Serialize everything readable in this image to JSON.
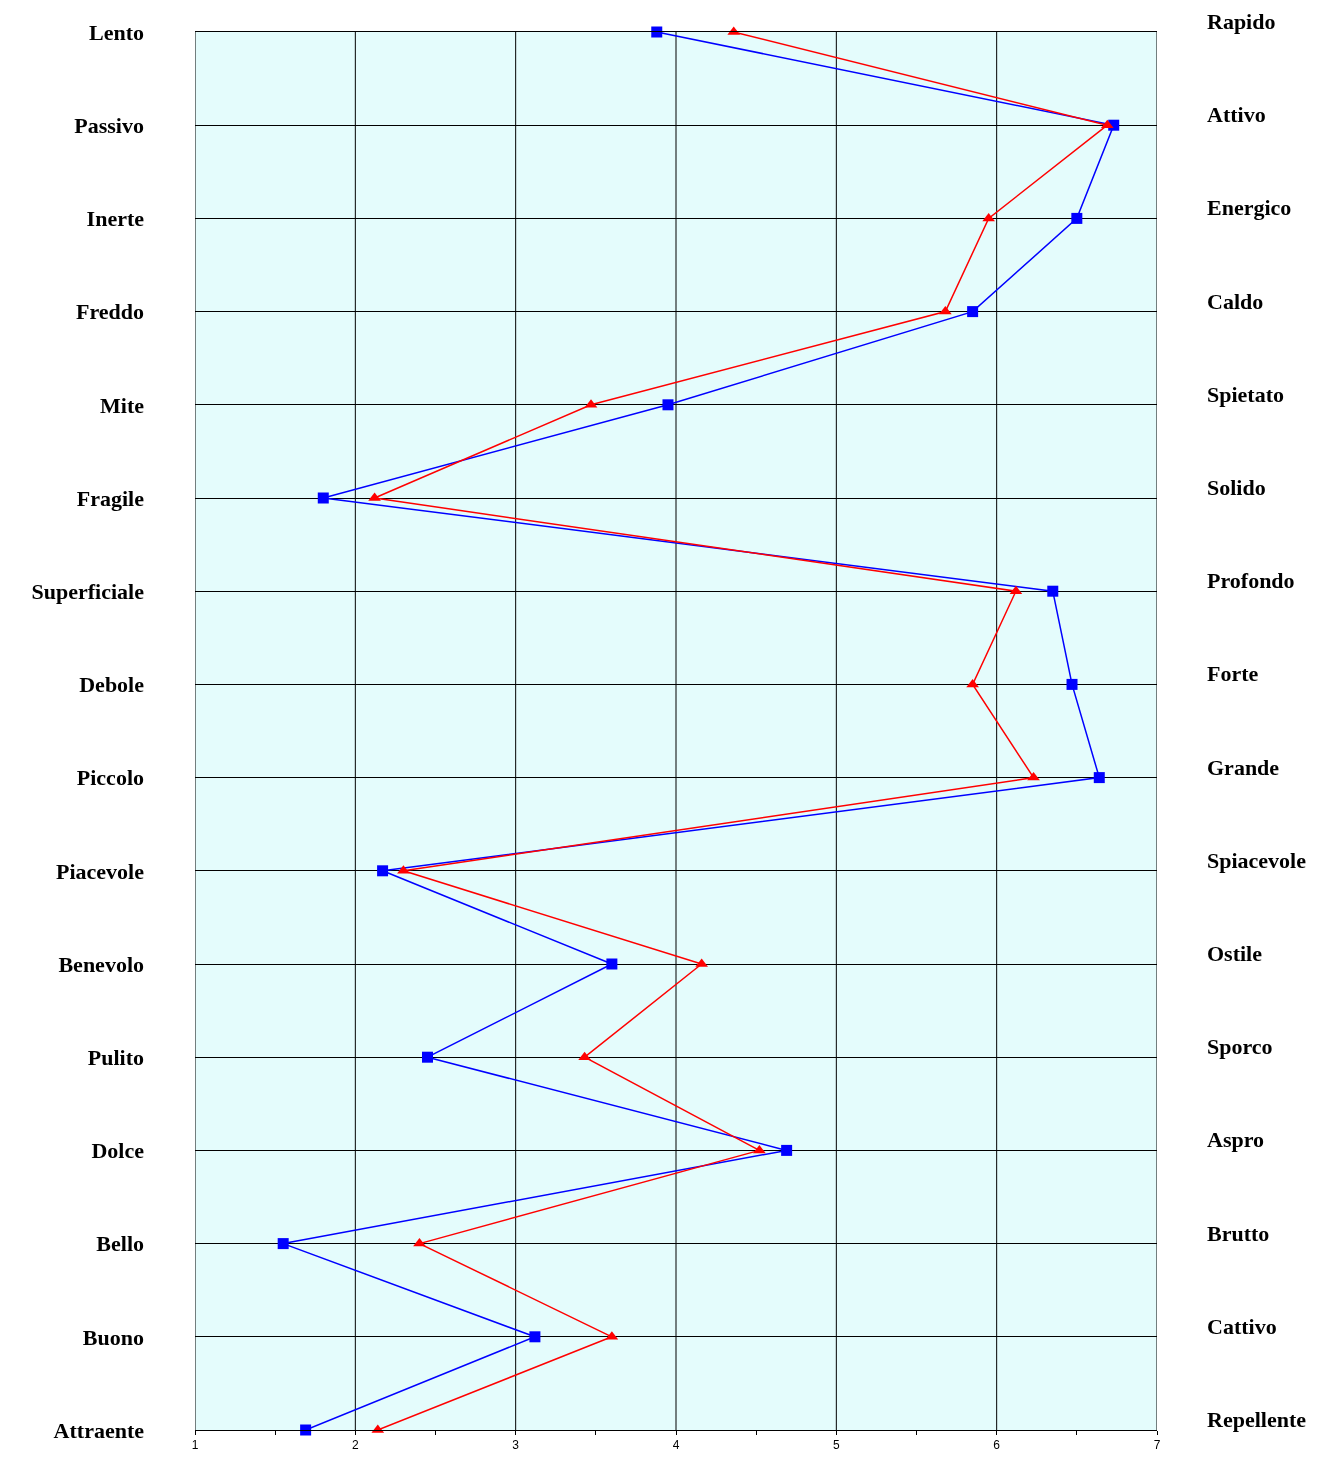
{
  "chart_data": {
    "type": "line",
    "orientation": "horizontal",
    "categories": [
      "Lento",
      "Passivo",
      "Inerte",
      "Freddo",
      "Mite",
      "Fragile",
      "Superficiale",
      "Debole",
      "Piccolo",
      "Piacevole",
      "Benevolo",
      "Pulito",
      "Dolce",
      "Bello",
      "Buono",
      "Attraente"
    ],
    "y2_categories": [
      "Rapido",
      "Attivo",
      "Energico",
      "Caldo",
      "Spietato",
      "Solido",
      "Profondo",
      "Forte",
      "Grande",
      "Spiacevole",
      "Ostile",
      "Sporco",
      "Aspro",
      "Brutto",
      "Cattivo",
      "Repellente"
    ],
    "series": [
      {
        "color": "#0000ff",
        "marker": "square",
        "values": [
          3.88,
          6.73,
          6.5,
          5.85,
          3.95,
          1.8,
          6.35,
          6.47,
          6.64,
          2.17,
          3.6,
          2.45,
          4.69,
          1.55,
          3.12,
          1.69
        ]
      },
      {
        "color": "#ff0000",
        "marker": "triangle",
        "values": [
          4.36,
          6.69,
          5.95,
          5.68,
          3.47,
          2.12,
          6.12,
          5.85,
          6.23,
          2.3,
          4.16,
          3.43,
          4.52,
          2.4,
          3.6,
          2.14
        ]
      }
    ],
    "xlim": [
      1,
      7
    ],
    "xticks": [
      1,
      {
        "value": 1.5,
        "label": null
      },
      2,
      {
        "value": 2.5,
        "label": null
      },
      3,
      {
        "value": 3.5,
        "label": null
      },
      4,
      {
        "value": 4.5,
        "label": null
      },
      5,
      {
        "value": 5.5,
        "label": null
      },
      6,
      {
        "value": 6.5,
        "label": null
      },
      7
    ],
    "grid": true,
    "line_style": "solid"
  }
}
